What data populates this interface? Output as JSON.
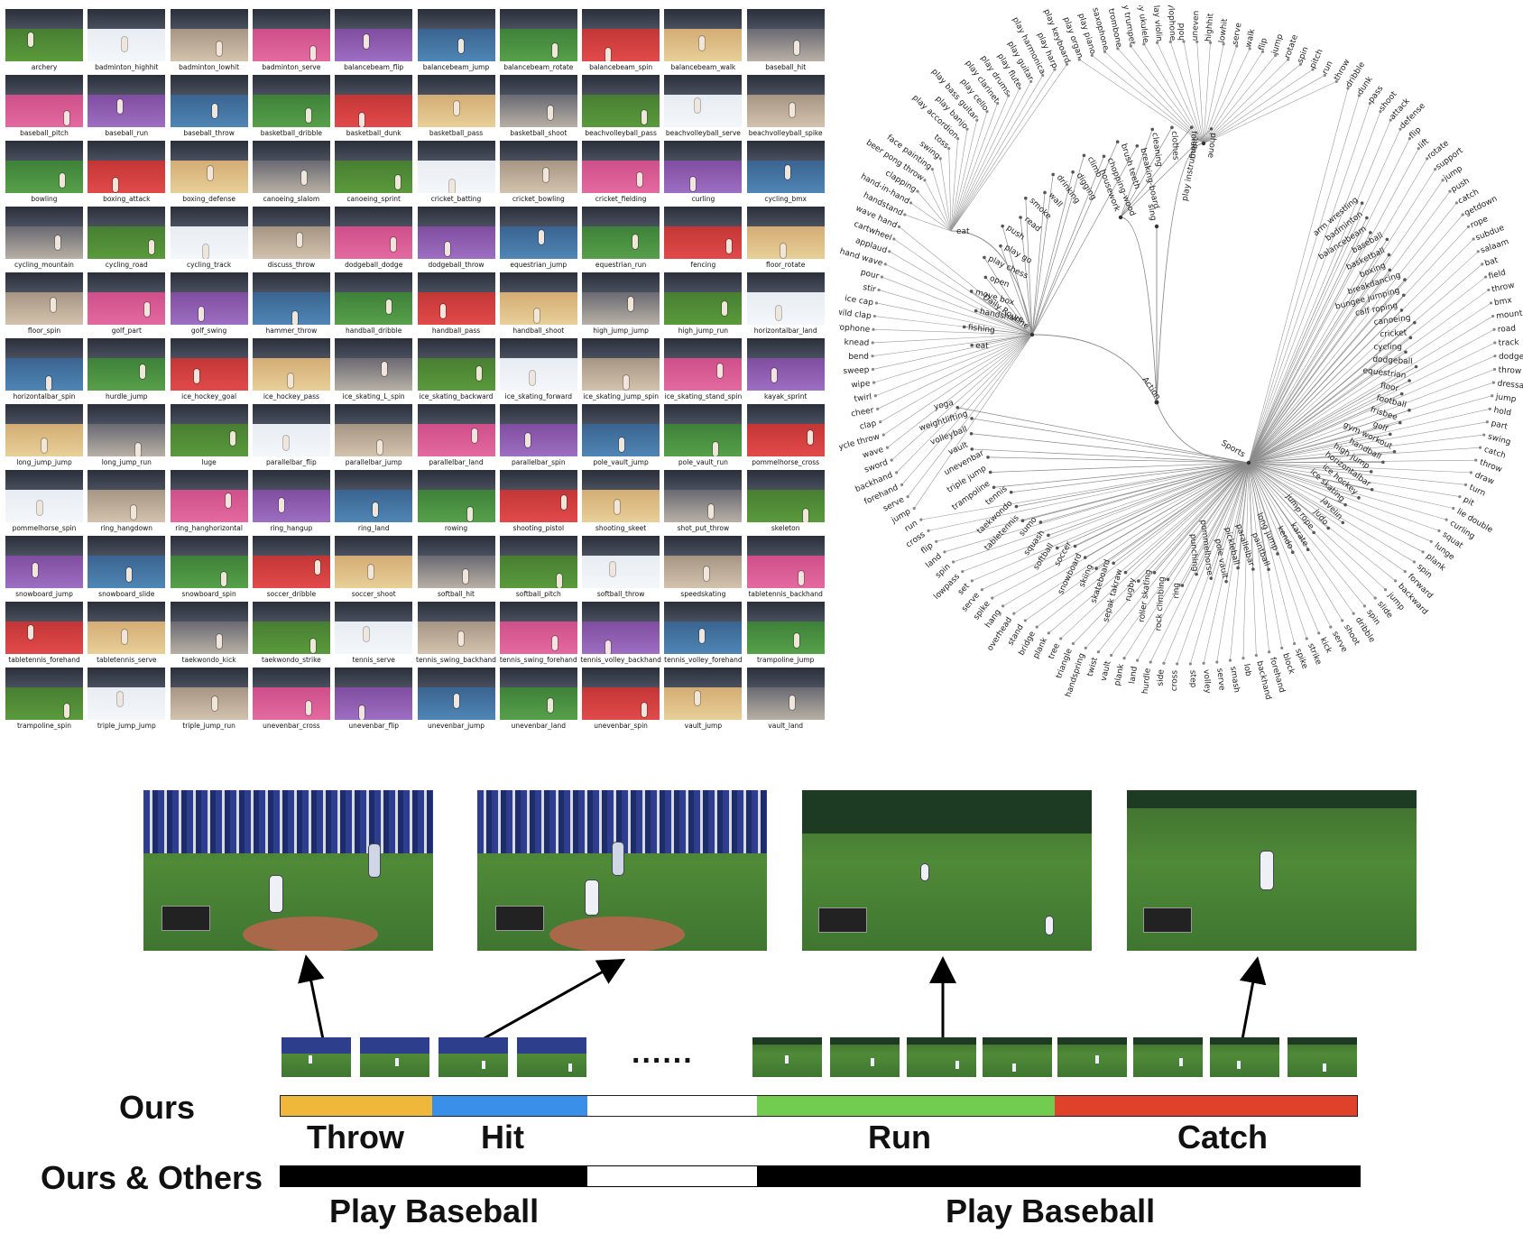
{
  "grid_labels": [
    "archery",
    "badminton_highhit",
    "badminton_lowhit",
    "badminton_serve",
    "balancebeam_flip",
    "balancebeam_jump",
    "balancebeam_rotate",
    "balancebeam_spin",
    "balancebeam_walk",
    "baseball_hit",
    "baseball_pitch",
    "baseball_run",
    "baseball_throw",
    "basketball_dribble",
    "basketball_dunk",
    "basketball_pass",
    "basketball_shoot",
    "beachvolleyball_pass",
    "beachvolleyball_serve",
    "beachvolleyball_spike",
    "bowling",
    "boxing_attack",
    "boxing_defense",
    "canoeing_slalom",
    "canoeing_sprint",
    "cricket_batting",
    "cricket_bowling",
    "cricket_fielding",
    "curling",
    "cycling_bmx",
    "cycling_mountain",
    "cycling_road",
    "cycling_track",
    "discuss_throw",
    "dodgeball_dodge",
    "dodgeball_throw",
    "equestrian_jump",
    "equestrian_run",
    "fencing",
    "floor_rotate",
    "floor_spin",
    "golf_part",
    "golf_swing",
    "hammer_throw",
    "handball_dribble",
    "handball_pass",
    "handball_shoot",
    "high_jump_jump",
    "high_jump_run",
    "horizontalbar_land",
    "horizontalbar_spin",
    "hurdle_jump",
    "ice_hockey_goal",
    "ice_hockey_pass",
    "ice_skating_L_spin",
    "ice_skating_backward",
    "ice_skating_forward",
    "ice_skating_jump_spin",
    "ice_skating_stand_spin",
    "kayak_sprint",
    "long_jump_jump",
    "long_jump_run",
    "luge",
    "parallelbar_flip",
    "parallelbar_jump",
    "parallelbar_land",
    "parallelbar_spin",
    "pole_vault_jump",
    "pole_vault_run",
    "pommelhorse_cross",
    "pommelhorse_spin",
    "ring_hangdown",
    "ring_hanghorizontal",
    "ring_hangup",
    "ring_land",
    "rowing",
    "shooting_pistol",
    "shooting_skeet",
    "shot_put_throw",
    "skeleton",
    "snowboard_jump",
    "snowboard_slide",
    "snowboard_spin",
    "soccer_dribble",
    "soccer_shoot",
    "softball_hit",
    "softball_pitch",
    "softball_throw",
    "speedskating",
    "tabletennis_backhand",
    "tabletennis_forehand",
    "tabletennis_serve",
    "taekwondo_kick",
    "taekwondo_strike",
    "tennis_serve",
    "tennis_swing_backhand",
    "tennis_swing_forehand",
    "tennis_volley_backhand",
    "tennis_volley_forehand",
    "trampoline_jump",
    "trampoline_spin",
    "triple_jump_jump",
    "triple_jump_run",
    "unevenbar_cross",
    "unevenbar_flip",
    "unevenbar_jump",
    "unevenbar_land",
    "unevenbar_spin",
    "vault_jump",
    "vault_land"
  ],
  "tree": {
    "root_label": "Action",
    "branches": [
      {
        "label": "Sports",
        "children": [
          "arm wrestling",
          "badminton",
          "balancebeam",
          "baseball",
          "basketball",
          "boxing",
          "breakdancing",
          "bungee jumping",
          "calf roping",
          "canoeing",
          "cricket",
          "cycling",
          "dodgeball",
          "equestrian",
          "floor",
          "football",
          "frisbee",
          "golf",
          "gym workout",
          "handball",
          "high jump",
          "horizontalbar",
          "ice hockey",
          "ice skating",
          "javelin",
          "judo",
          "jump rope",
          "karate",
          "kendo",
          "long jump",
          "paintball",
          "parallelbar",
          "pickleball",
          "pole vault",
          "pommelhorse",
          "punching",
          "ring",
          "rock climbing",
          "roller skating",
          "rugby",
          "sepak takraw",
          "skateboard",
          "skiing",
          "snowboard",
          "soccer",
          "softball",
          "squash",
          "sumo",
          "tabletennis",
          "taekwondo",
          "tennis",
          "trampoline",
          "triple jump",
          "unevenbar",
          "vault",
          "volleyball",
          "weightlifting",
          "yoga"
        ]
      },
      {
        "label": "Daily Routine",
        "children": [
          "eat",
          "fishing",
          "handshake",
          "move box",
          "open",
          "play chess",
          "play go",
          "push",
          "read",
          "smoke",
          "wall",
          "drinking",
          "digging",
          "climb",
          "chopping-wood",
          "brush teeth",
          "breaking-board"
        ]
      },
      {
        "label": "housework",
        "children": [
          "cleaning",
          "clothes",
          "folding",
          "phone"
        ]
      },
      {
        "label": "play instrument",
        "children": []
      },
      {
        "label": "sing",
        "children": []
      }
    ],
    "outer_sample": [
      "hold",
      "uneven",
      "highhit",
      "lowhit",
      "serve",
      "walk",
      "flip",
      "jump",
      "rotate",
      "spin",
      "pitch",
      "run",
      "throw",
      "dribble",
      "dunk",
      "pass",
      "shoot",
      "attack",
      "defense",
      "flip",
      "lift",
      "rotate",
      "support",
      "jump",
      "push",
      "catch",
      "getdown",
      "rope",
      "subdue",
      "salaam",
      "bat",
      "field",
      "throw",
      "bmx",
      "mountain",
      "road",
      "track",
      "dodge",
      "throw",
      "dressage",
      "jump",
      "hold",
      "part",
      "swing",
      "catch",
      "throw",
      "draw",
      "turn",
      "pit",
      "lie double",
      "curling",
      "squat",
      "lunge",
      "plank",
      "spin",
      "forward",
      "backward",
      "jump",
      "slide",
      "spin",
      "dribble",
      "shoot",
      "serve",
      "kick",
      "strike",
      "spike",
      "block",
      "forehand",
      "backhand",
      "lob",
      "smash",
      "serve",
      "volley",
      "step",
      "cross",
      "side",
      "hurdle",
      "land",
      "plank",
      "vault",
      "twist",
      "handspring",
      "triangle",
      "tree",
      "plank",
      "bridge",
      "stand",
      "overhead",
      "hang",
      "spike",
      "serve",
      "set",
      "lowpass",
      "spin",
      "land",
      "flip",
      "cross",
      "run",
      "jump",
      "serve",
      "forehand",
      "backhand",
      "sword",
      "wave",
      "bicycle throw",
      "clap",
      "cheer",
      "twirl",
      "wipe",
      "sweep",
      "bend",
      "knead",
      "singing microphone",
      "wild clap",
      "ice cap",
      "stir",
      "pour",
      "hand wave",
      "applaud",
      "cartwheel",
      "wave hand",
      "handstand",
      "hand-in-hand",
      "clapping",
      "beer pong throw",
      "face painting",
      "swing",
      "toss",
      "play accordion",
      "play banjo",
      "play bass guitar",
      "play cello",
      "play clarinet",
      "play drums",
      "play flute",
      "play guitar",
      "play harmonica",
      "play harp",
      "play keyboard",
      "play organ",
      "play piano",
      "play saxophone",
      "play trombone",
      "play trumpet",
      "play ukulele",
      "play violin",
      "play xylophone"
    ]
  },
  "bottom": {
    "ours_label": "Ours",
    "ours_others_label": "Ours & Others",
    "dots": "......",
    "segments": [
      {
        "label": "Throw",
        "color": "#f0b83a"
      },
      {
        "label": "Hit",
        "color": "#3a8fe8"
      },
      {
        "label": "",
        "color": "#ffffff"
      },
      {
        "label": "Run",
        "color": "#72cc50"
      },
      {
        "label": "Catch",
        "color": "#e0412a"
      }
    ],
    "others_segments": [
      {
        "label": "Play Baseball",
        "color": "#000000"
      },
      {
        "label": "",
        "color": "#ffffff"
      },
      {
        "label": "Play Baseball",
        "color": "#000000"
      }
    ]
  }
}
